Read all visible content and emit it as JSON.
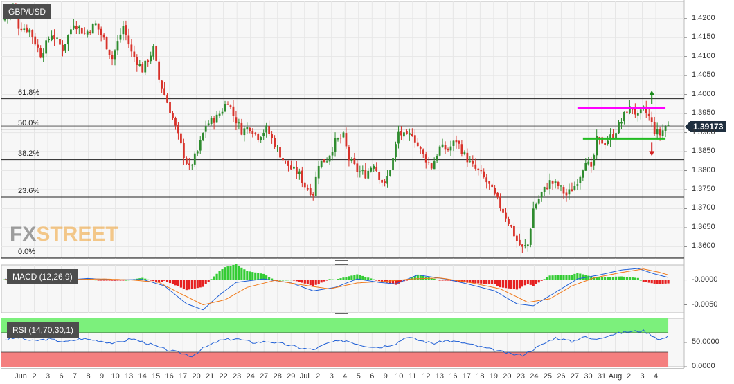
{
  "symbol": "GBP/USD",
  "current_price": "1.39173",
  "watermark": {
    "fx": "FX",
    "street": "STREET"
  },
  "colors": {
    "up": "#2e8b2e",
    "down": "#d8322a",
    "resistance": "#ff00ff",
    "support": "#22bb22",
    "macd_line": "#1f5fd6",
    "signal_line": "#f07818",
    "hist_pos": "#33cc33",
    "hist_neg": "#e62020",
    "rsi_line": "#1f5fd6",
    "rsi_overbought": "#7cf07c",
    "rsi_oversold": "#f47f7f"
  },
  "chart_data": [
    {
      "type": "candlestick",
      "title": "GBP/USD",
      "ylim": [
        1.3568,
        1.4245
      ],
      "y_ticks": [
        "1.4200",
        "1.4150",
        "1.4100",
        "1.4050",
        "1.4000",
        "1.3950",
        "1.3900",
        "1.3850",
        "1.3800",
        "1.3750",
        "1.3700",
        "1.3650",
        "1.3600"
      ],
      "x_ticks": [
        "Jun",
        "2",
        "3",
        "6",
        "7",
        "8",
        "9",
        "10",
        "13",
        "14",
        "15",
        "16",
        "17",
        "20",
        "21",
        "22",
        "23",
        "24",
        "27",
        "28",
        "29",
        "Jul",
        "2",
        "3",
        "4",
        "5",
        "6",
        "9",
        "10",
        "11",
        "12",
        "13",
        "16",
        "17",
        "18",
        "19",
        "20",
        "23",
        "24",
        "25",
        "26",
        "27",
        "30",
        "31",
        "Aug",
        "2",
        "3",
        "4"
      ],
      "fibonacci": [
        {
          "label": "61.8%",
          "value": 1.3989
        },
        {
          "label": "50.0%",
          "value": 1.3909
        },
        {
          "label": "38.2%",
          "value": 1.3829
        },
        {
          "label": "23.6%",
          "value": 1.373
        },
        {
          "label": "0.0%",
          "value": 1.357
        }
      ],
      "levels": {
        "resistance": 1.3965,
        "support": 1.3884
      },
      "path_anchors": [
        [
          0,
          1.4195
        ],
        [
          4,
          1.4228
        ],
        [
          6,
          1.418
        ],
        [
          10,
          1.417
        ],
        [
          14,
          1.4105
        ],
        [
          18,
          1.416
        ],
        [
          22,
          1.412
        ],
        [
          26,
          1.419
        ],
        [
          30,
          1.416
        ],
        [
          34,
          1.4185
        ],
        [
          37,
          1.4145
        ],
        [
          40,
          1.4095
        ],
        [
          44,
          1.418
        ],
        [
          47,
          1.411
        ],
        [
          51,
          1.4065
        ],
        [
          55,
          1.412
        ],
        [
          57,
          1.404
        ],
        [
          61,
          1.396
        ],
        [
          64,
          1.389
        ],
        [
          66,
          1.384
        ],
        [
          68,
          1.3805
        ],
        [
          71,
          1.385
        ],
        [
          74,
          1.392
        ],
        [
          78,
          1.394
        ],
        [
          80,
          1.396
        ],
        [
          82,
          1.3985
        ],
        [
          84,
          1.3945
        ],
        [
          87,
          1.3905
        ],
        [
          90,
          1.3915
        ],
        [
          93,
          1.389
        ],
        [
          96,
          1.391
        ],
        [
          99,
          1.387
        ],
        [
          102,
          1.383
        ],
        [
          105,
          1.3805
        ],
        [
          108,
          1.379
        ],
        [
          110,
          1.376
        ],
        [
          113,
          1.374
        ],
        [
          115,
          1.382
        ],
        [
          118,
          1.383
        ],
        [
          121,
          1.3875
        ],
        [
          124,
          1.389
        ],
        [
          126,
          1.383
        ],
        [
          129,
          1.38
        ],
        [
          132,
          1.379
        ],
        [
          135,
          1.382
        ],
        [
          137,
          1.3785
        ],
        [
          139,
          1.376
        ],
        [
          142,
          1.383
        ],
        [
          144,
          1.39
        ],
        [
          147,
          1.3885
        ],
        [
          149,
          1.39
        ],
        [
          151,
          1.3865
        ],
        [
          153,
          1.384
        ],
        [
          156,
          1.381
        ],
        [
          159,
          1.386
        ],
        [
          162,
          1.3855
        ],
        [
          165,
          1.388
        ],
        [
          168,
          1.384
        ],
        [
          171,
          1.381
        ],
        [
          174,
          1.379
        ],
        [
          177,
          1.376
        ],
        [
          180,
          1.372
        ],
        [
          183,
          1.368
        ],
        [
          185,
          1.365
        ],
        [
          187,
          1.3615
        ],
        [
          189,
          1.3595
        ],
        [
          191,
          1.3605
        ],
        [
          193,
          1.37
        ],
        [
          196,
          1.374
        ],
        [
          199,
          1.377
        ],
        [
          202,
          1.376
        ],
        [
          205,
          1.3735
        ],
        [
          208,
          1.376
        ],
        [
          210,
          1.379
        ],
        [
          212,
          1.383
        ],
        [
          214,
          1.38
        ],
        [
          216,
          1.388
        ],
        [
          219,
          1.3875
        ],
        [
          222,
          1.3895
        ],
        [
          225,
          1.393
        ],
        [
          227,
          1.396
        ],
        [
          229,
          1.3965
        ],
        [
          231,
          1.394
        ],
        [
          233,
          1.396
        ],
        [
          235,
          1.394
        ],
        [
          237,
          1.3905
        ],
        [
          239,
          1.3895
        ],
        [
          241,
          1.3917
        ]
      ],
      "n_candles": 242,
      "visible_candles": 243
    },
    {
      "type": "line",
      "title": "MACD (12,26,9)",
      "ylim": [
        -0.0066,
        0.003
      ],
      "y_ticks": [
        "-0.0000",
        "-0.0050"
      ],
      "series": [
        {
          "name": "MACD",
          "anchors": [
            [
              0,
              0.0002
            ],
            [
              6,
              -0.0004
            ],
            [
              12,
              0.0
            ],
            [
              20,
              -0.0001
            ],
            [
              30,
              0.0003
            ],
            [
              40,
              0.0
            ],
            [
              50,
              0.0001
            ],
            [
              58,
              -0.0012
            ],
            [
              66,
              -0.0048
            ],
            [
              72,
              -0.006
            ],
            [
              78,
              -0.003
            ],
            [
              84,
              -0.0005
            ],
            [
              94,
              0.0002
            ],
            [
              104,
              -0.0006
            ],
            [
              112,
              -0.0022
            ],
            [
              120,
              -0.0015
            ],
            [
              128,
              0.0002
            ],
            [
              136,
              -0.0005
            ],
            [
              142,
              -0.0008
            ],
            [
              150,
              0.001
            ],
            [
              160,
              0.0002
            ],
            [
              168,
              -0.0008
            ],
            [
              178,
              -0.0022
            ],
            [
              186,
              -0.0048
            ],
            [
              192,
              -0.0052
            ],
            [
              200,
              -0.0025
            ],
            [
              208,
              0.0002
            ],
            [
              216,
              0.001
            ],
            [
              224,
              0.002
            ],
            [
              230,
              0.0023
            ],
            [
              236,
              0.0012
            ],
            [
              241,
              0.0005
            ]
          ]
        },
        {
          "name": "Signal",
          "anchors": [
            [
              0,
              0.0001
            ],
            [
              8,
              -0.0002
            ],
            [
              16,
              -0.0001
            ],
            [
              26,
              0.0001
            ],
            [
              36,
              0.0002
            ],
            [
              46,
              0.0
            ],
            [
              56,
              -0.0005
            ],
            [
              64,
              -0.0028
            ],
            [
              72,
              -0.005
            ],
            [
              80,
              -0.004
            ],
            [
              88,
              -0.0015
            ],
            [
              98,
              -0.0001
            ],
            [
              108,
              -0.001
            ],
            [
              118,
              -0.0018
            ],
            [
              128,
              -0.0006
            ],
            [
              138,
              -0.0003
            ],
            [
              148,
              0.0002
            ],
            [
              158,
              0.0004
            ],
            [
              168,
              -0.0004
            ],
            [
              180,
              -0.0018
            ],
            [
              190,
              -0.0045
            ],
            [
              198,
              -0.0038
            ],
            [
              206,
              -0.0012
            ],
            [
              214,
              0.0004
            ],
            [
              224,
              0.0015
            ],
            [
              232,
              0.0022
            ],
            [
              238,
              0.0015
            ],
            [
              241,
              0.001
            ]
          ]
        }
      ]
    },
    {
      "type": "line",
      "title": "RSI (14,70,30,1)",
      "ylim": [
        0,
        100
      ],
      "y_ticks": [
        "50.0000",
        "0.0000"
      ],
      "overbought": 70,
      "oversold": 30,
      "series": [
        {
          "name": "RSI",
          "anchors": [
            [
              0,
              56
            ],
            [
              5,
              60
            ],
            [
              10,
              53
            ],
            [
              16,
              57
            ],
            [
              22,
              51
            ],
            [
              28,
              58
            ],
            [
              34,
              54
            ],
            [
              40,
              48
            ],
            [
              46,
              58
            ],
            [
              52,
              48
            ],
            [
              58,
              36
            ],
            [
              64,
              28
            ],
            [
              68,
              22
            ],
            [
              72,
              38
            ],
            [
              78,
              54
            ],
            [
              84,
              58
            ],
            [
              90,
              50
            ],
            [
              96,
              52
            ],
            [
              102,
              46
            ],
            [
              108,
              38
            ],
            [
              112,
              35
            ],
            [
              118,
              50
            ],
            [
              124,
              54
            ],
            [
              130,
              44
            ],
            [
              136,
              40
            ],
            [
              142,
              48
            ],
            [
              146,
              62
            ],
            [
              150,
              55
            ],
            [
              156,
              48
            ],
            [
              160,
              54
            ],
            [
              166,
              50
            ],
            [
              172,
              42
            ],
            [
              178,
              34
            ],
            [
              184,
              26
            ],
            [
              188,
              24
            ],
            [
              192,
              36
            ],
            [
              196,
              48
            ],
            [
              200,
              60
            ],
            [
              206,
              52
            ],
            [
              210,
              62
            ],
            [
              214,
              56
            ],
            [
              220,
              66
            ],
            [
              226,
              72
            ],
            [
              232,
              74
            ],
            [
              236,
              62
            ],
            [
              238,
              56
            ],
            [
              241,
              62
            ]
          ]
        }
      ]
    }
  ]
}
